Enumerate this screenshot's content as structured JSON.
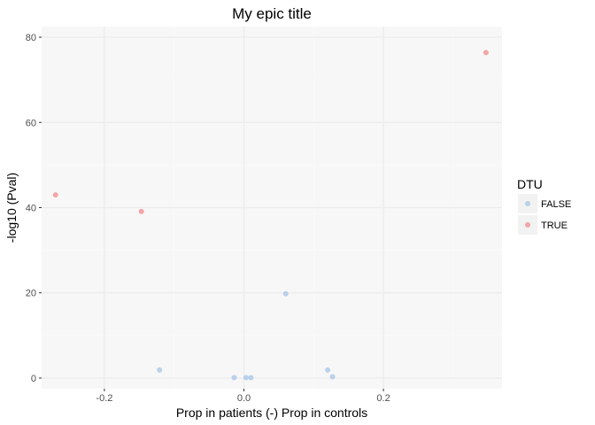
{
  "chart_data": {
    "type": "scatter",
    "title": "My epic title",
    "xlabel": "Prop in patients (-) Prop in controls",
    "ylabel": "-log10 (Pval)",
    "xlim": [
      -0.29,
      0.37
    ],
    "ylim": [
      -2.5,
      82.5
    ],
    "x_ticks": [
      -0.2,
      0.0,
      0.2
    ],
    "x_tick_labels": [
      "-0.2",
      "0.0",
      "0.2"
    ],
    "y_ticks": [
      0,
      20,
      40,
      60,
      80
    ],
    "y_tick_labels": [
      "0",
      "20",
      "40",
      "60",
      "80"
    ],
    "grid": true,
    "legend": {
      "title": "DTU",
      "position": "right",
      "entries": [
        {
          "label": "FALSE",
          "color": "#a6c4e6"
        },
        {
          "label": "TRUE",
          "color": "#f28b8b"
        }
      ]
    },
    "series": [
      {
        "name": "FALSE",
        "color": "#a6c4e6",
        "points": [
          {
            "x": -0.121,
            "y": 1.9
          },
          {
            "x": -0.014,
            "y": 0.1
          },
          {
            "x": 0.003,
            "y": 0.1
          },
          {
            "x": 0.01,
            "y": 0.1
          },
          {
            "x": 0.06,
            "y": 19.8
          },
          {
            "x": 0.12,
            "y": 1.9
          },
          {
            "x": 0.127,
            "y": 0.3
          }
        ]
      },
      {
        "name": "TRUE",
        "color": "#f28b8b",
        "points": [
          {
            "x": -0.27,
            "y": 43.0
          },
          {
            "x": -0.147,
            "y": 39.1
          },
          {
            "x": 0.347,
            "y": 76.4
          }
        ]
      }
    ]
  }
}
